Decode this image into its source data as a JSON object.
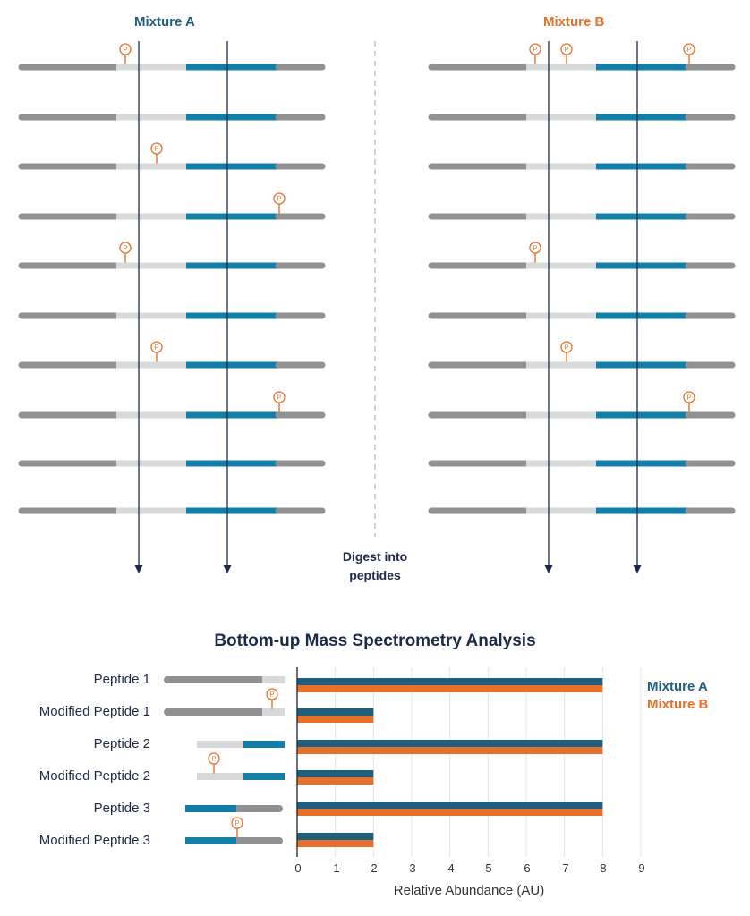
{
  "top": {
    "mixture_a_title": "Mixture A",
    "mixture_b_title": "Mixture B",
    "digest_line1": "Digest into",
    "digest_line2": "peptides",
    "phospho_symbol": "P",
    "mixture_a_sites": [
      [
        1
      ],
      [],
      [
        2
      ],
      [
        3
      ],
      [
        1
      ],
      [],
      [
        2
      ],
      [
        3
      ],
      [],
      []
    ],
    "mixture_b_sites": [
      [
        1,
        2,
        3
      ],
      [],
      [],
      [],
      [
        1
      ],
      [],
      [
        2
      ],
      [
        3
      ],
      [],
      []
    ]
  },
  "analysis": {
    "title": "Bottom-up Mass Spectrometry Analysis",
    "peptide_labels": [
      "Peptide 1",
      "Modified Peptide 1",
      "Peptide 2",
      "Modified Peptide 2",
      "Peptide 3",
      "Modified Peptide 3"
    ]
  },
  "legend": {
    "mixture_a": "Mixture A",
    "mixture_b": "Mixture B"
  },
  "colors": {
    "mixture_a": "#1f5f7e",
    "mixture_b": "#e8702a",
    "backbone_dark": "#8f9193",
    "backbone_light": "#d7d9da",
    "backbone_blue": "#137fa6",
    "arrow": "#1c2a4a"
  },
  "chart_data": {
    "type": "bar",
    "orientation": "horizontal",
    "categories": [
      "Peptide 1",
      "Modified Peptide 1",
      "Peptide 2",
      "Modified Peptide 2",
      "Peptide 3",
      "Modified Peptide 3"
    ],
    "series": [
      {
        "name": "Mixture A",
        "values": [
          8,
          2,
          8,
          2,
          8,
          2
        ]
      },
      {
        "name": "Mixture B",
        "values": [
          8,
          2,
          8,
          2,
          8,
          2
        ]
      }
    ],
    "xlabel": "Relative Abundance (AU)",
    "xticks": [
      "0",
      "1",
      "2",
      "3",
      "4",
      "5",
      "6",
      "7",
      "8",
      "9"
    ],
    "xlim": [
      0,
      9
    ],
    "grid": true,
    "legend_position": "right"
  }
}
